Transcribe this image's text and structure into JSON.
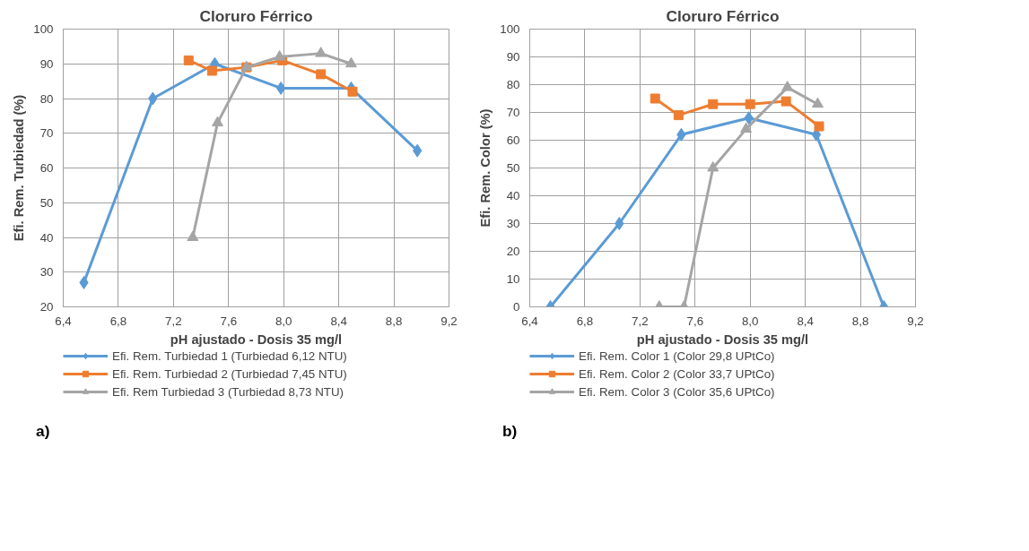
{
  "chart_data": [
    {
      "type": "line",
      "title": "Cloruro Férrico",
      "xlabel": "pH ajustado - Dosis 35 mg/l",
      "ylabel": "Efi. Rem. Turbiedad (%)",
      "xlim": [
        6.4,
        9.2
      ],
      "xticks": [
        {
          "value": 6.4,
          "label": "6,4"
        },
        {
          "value": 6.8,
          "label": "6,8"
        },
        {
          "value": 7.2,
          "label": "7,2"
        },
        {
          "value": 7.6,
          "label": "7,6"
        },
        {
          "value": 8.0,
          "label": "8,0"
        },
        {
          "value": 8.4,
          "label": "8,4"
        },
        {
          "value": 8.8,
          "label": "8,8"
        },
        {
          "value": 9.2,
          "label": "9,2"
        }
      ],
      "ylim": [
        20,
        100
      ],
      "yticks": [
        20,
        30,
        40,
        50,
        60,
        70,
        80,
        90,
        100
      ],
      "grid": true,
      "legend": "bottom",
      "line_style": "solid",
      "annotations": [
        "a)"
      ],
      "series": [
        {
          "name": "Efi. Rem. Turbiedad 1 (Turbiedad 6,12 NTU)",
          "color": "#5b9bd5",
          "marker": "diamond",
          "x": [
            6.55,
            7.05,
            7.5,
            7.98,
            8.49,
            8.97
          ],
          "values": [
            27,
            80,
            90,
            83,
            83,
            65
          ]
        },
        {
          "name": "Efi. Rem. Turbiedad 2 (Turbiedad 7,45 NTU)",
          "color": "#ed7d31",
          "marker": "square",
          "x": [
            7.31,
            7.48,
            7.73,
            7.99,
            8.27,
            8.5
          ],
          "values": [
            91,
            88,
            89,
            91,
            87,
            82
          ]
        },
        {
          "name": "Efi. Rem Turbiedad 3 (Turbiedad 8,73 NTU)",
          "color": "#a5a5a5",
          "marker": "triangle",
          "x": [
            7.34,
            7.52,
            7.73,
            7.97,
            8.27,
            8.49
          ],
          "values": [
            40,
            73,
            89,
            92,
            93,
            90
          ]
        }
      ]
    },
    {
      "type": "line",
      "title": "Cloruro Férrico",
      "xlabel": "pH ajustado - Dosis 35 mg/l",
      "ylabel": "Efi. Rem. Color (%)",
      "xlim": [
        6.4,
        9.2
      ],
      "xticks": [
        {
          "value": 6.4,
          "label": "6,4"
        },
        {
          "value": 6.8,
          "label": "6,8"
        },
        {
          "value": 7.2,
          "label": "7,2"
        },
        {
          "value": 7.6,
          "label": "7,6"
        },
        {
          "value": 8.0,
          "label": "8,0"
        },
        {
          "value": 8.4,
          "label": "8,4"
        },
        {
          "value": 8.8,
          "label": "8,8"
        },
        {
          "value": 9.2,
          "label": "9,2"
        }
      ],
      "ylim": [
        0,
        100
      ],
      "yticks": [
        0,
        10,
        20,
        30,
        40,
        50,
        60,
        70,
        80,
        90,
        100
      ],
      "grid": true,
      "legend": "bottom",
      "line_style": "solid",
      "annotations": [
        "b)"
      ],
      "series": [
        {
          "name": "Efi. Rem. Color 1 (Color 29,8 UPtCo)",
          "color": "#5b9bd5",
          "marker": "diamond",
          "x": [
            6.55,
            7.05,
            7.5,
            7.99,
            8.48,
            8.97
          ],
          "values": [
            0,
            30,
            62,
            68,
            62,
            0
          ]
        },
        {
          "name": "Efi. Rem. Color 2 (Color 33,7 UPtCo)",
          "color": "#ed7d31",
          "marker": "square",
          "x": [
            7.31,
            7.48,
            7.73,
            8.0,
            8.26,
            8.5
          ],
          "values": [
            75,
            69,
            73,
            73,
            74,
            65
          ]
        },
        {
          "name": "Efi. Rem. Color 3 (Color 35,6 UPtCo)",
          "color": "#a5a5a5",
          "marker": "triangle",
          "x": [
            7.34,
            7.52,
            7.73,
            7.97,
            8.27,
            8.49
          ],
          "values": [
            0,
            0,
            50,
            64,
            79,
            73
          ]
        }
      ]
    }
  ]
}
